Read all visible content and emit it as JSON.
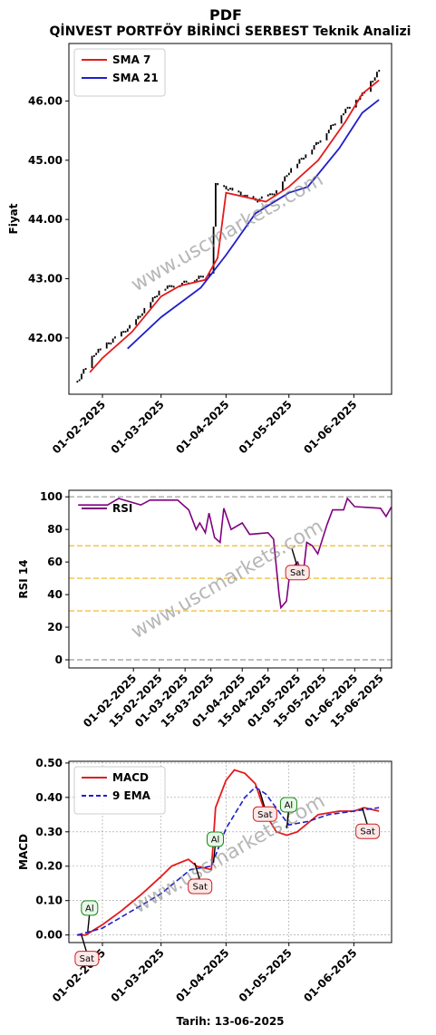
{
  "title": "PDF",
  "subtitle": "QİNVEST PORTFÖY BİRİNCİ SERBEST Teknik Analizi",
  "watermark": "www.uscmarkets.com",
  "xlabel": "Tarih: 13-06-2025",
  "colors": {
    "sma7": "#e41a1c",
    "sma21": "#1f1fcc",
    "rsi": "#800080",
    "macd": "#e41a1c",
    "ema": "#1f1fcc"
  },
  "chart_data": [
    {
      "type": "line",
      "name": "price",
      "ylabel": "Fiyat",
      "ylim": [
        41.05,
        46.97
      ],
      "xlim": [
        "2025-01-16",
        "2025-06-19"
      ],
      "x_ticks": [
        "01-02-2025",
        "01-03-2025",
        "01-04-2025",
        "01-05-2025",
        "01-06-2025"
      ],
      "y_ticks": [
        "42.00",
        "43.00",
        "44.00",
        "45.00",
        "46.00"
      ],
      "grid": false,
      "legend": "top-left",
      "price_keypoints": [
        [
          "2025-01-20",
          41.26
        ],
        [
          "2025-01-28",
          41.72
        ],
        [
          "2025-02-15",
          42.2
        ],
        [
          "2025-03-01",
          42.82
        ],
        [
          "2025-03-15",
          42.95
        ],
        [
          "2025-03-25",
          43.1
        ],
        [
          "2025-03-27",
          44.6
        ],
        [
          "2025-04-15",
          44.3
        ],
        [
          "2025-04-25",
          44.45
        ],
        [
          "2025-05-01",
          44.8
        ],
        [
          "2025-05-15",
          45.3
        ],
        [
          "2025-05-27",
          45.8
        ],
        [
          "2025-06-05",
          46.1
        ],
        [
          "2025-06-13",
          46.5
        ]
      ],
      "series": [
        {
          "name": "SMA 7",
          "points": [
            [
              "2025-01-26",
              41.42
            ],
            [
              "2025-02-01",
              41.66
            ],
            [
              "2025-02-15",
              42.1
            ],
            [
              "2025-03-01",
              42.7
            ],
            [
              "2025-03-10",
              42.88
            ],
            [
              "2025-03-22",
              42.98
            ],
            [
              "2025-03-28",
              43.35
            ],
            [
              "2025-04-01",
              44.45
            ],
            [
              "2025-04-20",
              44.3
            ],
            [
              "2025-05-01",
              44.55
            ],
            [
              "2025-05-15",
              45.0
            ],
            [
              "2025-05-28",
              45.65
            ],
            [
              "2025-06-05",
              46.12
            ],
            [
              "2025-06-13",
              46.35
            ]
          ]
        },
        {
          "name": "SMA 21",
          "points": [
            [
              "2025-02-13",
              41.82
            ],
            [
              "2025-03-01",
              42.35
            ],
            [
              "2025-03-20",
              42.85
            ],
            [
              "2025-04-01",
              43.4
            ],
            [
              "2025-04-15",
              44.1
            ],
            [
              "2025-05-01",
              44.45
            ],
            [
              "2025-05-10",
              44.55
            ],
            [
              "2025-05-25",
              45.2
            ],
            [
              "2025-06-05",
              45.8
            ],
            [
              "2025-06-13",
              46.02
            ]
          ]
        }
      ]
    },
    {
      "type": "line",
      "name": "rsi",
      "ylabel": "RSI 14",
      "ylim": [
        -5,
        104
      ],
      "xlim": [
        "2024-12-28",
        "2025-06-21"
      ],
      "x_ticks": [
        "01-02-2025",
        "15-02-2025",
        "01-03-2025",
        "15-03-2025",
        "01-04-2025",
        "15-04-2025",
        "01-05-2025",
        "15-05-2025",
        "01-06-2025",
        "15-06-2025"
      ],
      "y_ticks": [
        "0",
        "20",
        "40",
        "60",
        "80",
        "100"
      ],
      "hlines": [
        {
          "y": 100,
          "color": "#aaaaaa"
        },
        {
          "y": 70,
          "color": "#f0c040"
        },
        {
          "y": 50,
          "color": "#f0c040"
        },
        {
          "y": 30,
          "color": "#f0c040"
        },
        {
          "y": 0,
          "color": "#aaaaaa"
        }
      ],
      "legend": "top-left",
      "series": [
        {
          "name": "RSI",
          "points": [
            [
              "2025-01-02",
              95
            ],
            [
              "2025-01-18",
              95
            ],
            [
              "2025-01-24",
              99
            ],
            [
              "2025-02-05",
              95
            ],
            [
              "2025-02-10",
              98
            ],
            [
              "2025-02-25",
              98
            ],
            [
              "2025-03-03",
              92
            ],
            [
              "2025-03-07",
              80
            ],
            [
              "2025-03-09",
              84
            ],
            [
              "2025-03-12",
              78
            ],
            [
              "2025-03-14",
              90
            ],
            [
              "2025-03-17",
              75
            ],
            [
              "2025-03-20",
              72
            ],
            [
              "2025-03-22",
              93
            ],
            [
              "2025-03-26",
              80
            ],
            [
              "2025-04-01",
              84
            ],
            [
              "2025-04-05",
              77
            ],
            [
              "2025-04-15",
              78
            ],
            [
              "2025-04-18",
              74
            ],
            [
              "2025-04-21",
              40
            ],
            [
              "2025-04-22",
              32
            ],
            [
              "2025-04-25",
              36
            ],
            [
              "2025-04-27",
              55
            ],
            [
              "2025-05-01",
              60
            ],
            [
              "2025-05-04",
              52
            ],
            [
              "2025-05-06",
              72
            ],
            [
              "2025-05-09",
              70
            ],
            [
              "2025-05-12",
              65
            ],
            [
              "2025-05-17",
              83
            ],
            [
              "2025-05-20",
              92
            ],
            [
              "2025-05-26",
              92
            ],
            [
              "2025-05-28",
              99
            ],
            [
              "2025-06-01",
              94
            ],
            [
              "2025-06-15",
              93
            ],
            [
              "2025-06-18",
              88
            ],
            [
              "2025-06-22",
              96
            ],
            [
              "2025-06-24",
              94
            ],
            [
              "2025-06-26",
              96
            ]
          ]
        }
      ],
      "annotations": [
        {
          "text": "Sat",
          "x": "2025-04-28",
          "y": 68
        }
      ]
    },
    {
      "type": "line",
      "name": "macd",
      "ylabel": "MACD",
      "ylim": [
        -0.022,
        0.505
      ],
      "xlim": [
        "2025-01-16",
        "2025-06-19"
      ],
      "x_ticks": [
        "01-02-2025",
        "01-03-2025",
        "01-04-2025",
        "01-05-2025",
        "01-06-2025"
      ],
      "y_ticks": [
        "0.00",
        "0.10",
        "0.20",
        "0.30",
        "0.40",
        "0.50"
      ],
      "grid": true,
      "legend": "top-left",
      "series": [
        {
          "name": "MACD",
          "points": [
            [
              "2025-01-20",
              0.0
            ],
            [
              "2025-01-24",
              0.0
            ],
            [
              "2025-02-01",
              0.03
            ],
            [
              "2025-02-10",
              0.07
            ],
            [
              "2025-02-14",
              0.09
            ],
            [
              "2025-02-20",
              0.12
            ],
            [
              "2025-03-01",
              0.17
            ],
            [
              "2025-03-06",
              0.2
            ],
            [
              "2025-03-14",
              0.22
            ],
            [
              "2025-03-18",
              0.2
            ],
            [
              "2025-03-25",
              0.19
            ],
            [
              "2025-03-27",
              0.37
            ],
            [
              "2025-04-01",
              0.45
            ],
            [
              "2025-04-05",
              0.48
            ],
            [
              "2025-04-10",
              0.47
            ],
            [
              "2025-04-15",
              0.44
            ],
            [
              "2025-04-20",
              0.35
            ],
            [
              "2025-04-25",
              0.3
            ],
            [
              "2025-04-30",
              0.29
            ],
            [
              "2025-05-05",
              0.3
            ],
            [
              "2025-05-15",
              0.35
            ],
            [
              "2025-05-25",
              0.36
            ],
            [
              "2025-06-01",
              0.36
            ],
            [
              "2025-06-06",
              0.37
            ],
            [
              "2025-06-13",
              0.36
            ]
          ]
        },
        {
          "name": "9 EMA",
          "points": [
            [
              "2025-01-20",
              0.0
            ],
            [
              "2025-02-01",
              0.02
            ],
            [
              "2025-02-15",
              0.07
            ],
            [
              "2025-03-01",
              0.12
            ],
            [
              "2025-03-15",
              0.19
            ],
            [
              "2025-03-25",
              0.2
            ],
            [
              "2025-04-01",
              0.31
            ],
            [
              "2025-04-10",
              0.4
            ],
            [
              "2025-04-15",
              0.43
            ],
            [
              "2025-04-20",
              0.41
            ],
            [
              "2025-05-01",
              0.32
            ],
            [
              "2025-05-10",
              0.33
            ],
            [
              "2025-05-20",
              0.35
            ],
            [
              "2025-06-01",
              0.36
            ],
            [
              "2025-06-13",
              0.37
            ]
          ]
        }
      ],
      "annotations": [
        {
          "text": "Sat",
          "x": "2025-01-22",
          "y": 0.0
        },
        {
          "text": "Al",
          "x": "2025-01-25",
          "y": 0.01
        },
        {
          "text": "Sat",
          "x": "2025-03-17",
          "y": 0.21
        },
        {
          "text": "Al",
          "x": "2025-03-26",
          "y": 0.21
        },
        {
          "text": "Sat",
          "x": "2025-04-17",
          "y": 0.42
        },
        {
          "text": "Al",
          "x": "2025-04-30",
          "y": 0.31
        },
        {
          "text": "Sat",
          "x": "2025-06-05",
          "y": 0.37
        }
      ]
    }
  ]
}
